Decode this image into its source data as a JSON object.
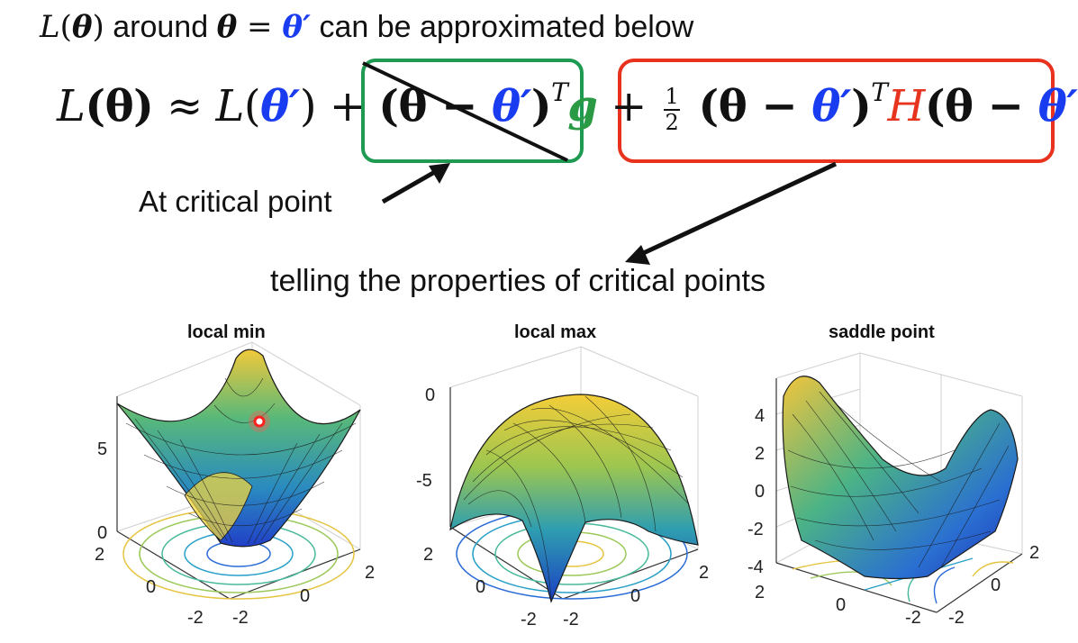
{
  "intro": {
    "L": "L",
    "open": "(",
    "theta": "θ",
    "close": ")",
    "around": " around ",
    "theta2": "θ",
    "eq": " = ",
    "theta_prime": "θ′",
    "rest": " can be approximated below"
  },
  "formula": {
    "lhs_L": "L",
    "lhs_theta": "(θ)",
    "approx": " ≈ ",
    "L2": "L",
    "p1": "(",
    "thp1": "θ′",
    "p2": ") + ",
    "t1": "(θ − ",
    "thp2": "θ′",
    "t1c": ")",
    "T1": "T",
    "g": "g",
    "plus": " + ",
    "frac_num": "1",
    "frac_den": "2",
    "t2": " (θ − ",
    "thp3": "θ′",
    "t2c": ")",
    "T2": "T",
    "H": "H",
    "t3": "(θ − ",
    "thp4": "θ′",
    "t3c": ")"
  },
  "annotations": {
    "critical_point": "At critical point",
    "properties": "telling the properties of critical points"
  },
  "plots": [
    {
      "title": "local min",
      "z_ticks": [
        "5",
        "0"
      ],
      "x_ticks": [
        "2",
        "0",
        "-2"
      ],
      "y_ticks": [
        "2",
        "0",
        "-2"
      ]
    },
    {
      "title": "local max",
      "z_ticks": [
        "0",
        "-5"
      ],
      "x_ticks": [
        "2",
        "0",
        "-2"
      ],
      "y_ticks": [
        "2",
        "0",
        "-2"
      ]
    },
    {
      "title": "saddle point",
      "z_ticks": [
        "4",
        "2",
        "0",
        "-2",
        "-4"
      ],
      "x_ticks": [
        "2",
        "0",
        "-2"
      ],
      "y_ticks": [
        "2",
        "0",
        "-2"
      ]
    }
  ],
  "colors": {
    "green_box": "#1f9a52",
    "red_box": "#e8321d",
    "theta_prime": "#1a3cf0",
    "g": "#2a9a44",
    "H": "#e6341f",
    "marker": "#ff2020"
  },
  "icons": [
    "arrow-to-gradient-term",
    "arrow-to-hessian-term"
  ]
}
